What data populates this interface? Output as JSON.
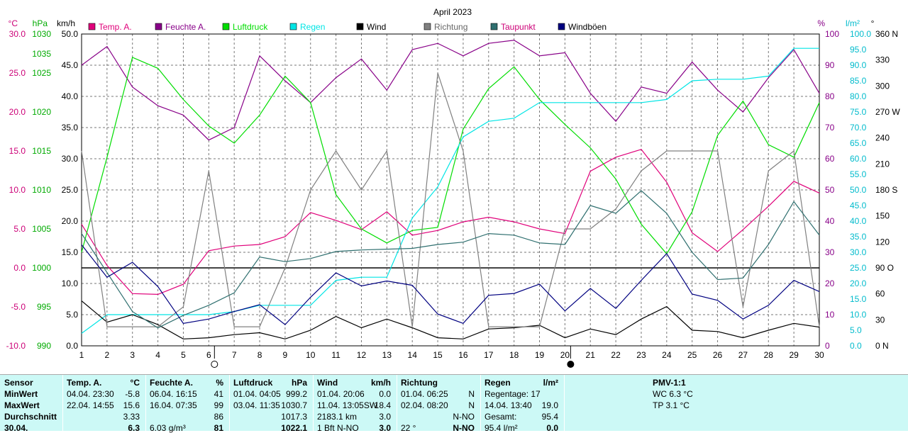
{
  "chart_data": {
    "type": "line",
    "title": "April 2023",
    "x": [
      1,
      2,
      3,
      4,
      5,
      6,
      7,
      8,
      9,
      10,
      11,
      12,
      13,
      14,
      15,
      16,
      17,
      18,
      19,
      20,
      21,
      22,
      23,
      24,
      25,
      26,
      27,
      28,
      29,
      30
    ],
    "axes": {
      "temp_c": {
        "unit": "°C",
        "range": [
          -10,
          30
        ],
        "ticks": [
          "30.0",
          "25.0",
          "20.0",
          "15.0",
          "10.0",
          "5.0",
          "0.0",
          "-5.0",
          "-10.0"
        ],
        "color": "#cc0077"
      },
      "pressure_hpa": {
        "unit": "hPa",
        "range": [
          990,
          1030
        ],
        "ticks": [
          "1035",
          "1030",
          "1025",
          "1020",
          "1015",
          "1010",
          "1005",
          "1000",
          "995",
          "990"
        ],
        "color": "#00aa00"
      },
      "speed_kmh": {
        "unit": "km/h",
        "range": [
          0,
          50
        ],
        "ticks": [
          "50.0",
          "45.0",
          "40.0",
          "35.0",
          "30.0",
          "25.0",
          "20.0",
          "15.0",
          "10.0",
          "5.0",
          "0.0"
        ],
        "color": "#000000"
      },
      "percent": {
        "unit": "%",
        "range": [
          0,
          100
        ],
        "ticks": [
          "100",
          "90",
          "80",
          "70",
          "60",
          "50",
          "40",
          "30",
          "20",
          "10",
          "0"
        ],
        "color": "#880088"
      },
      "rain_lm2": {
        "unit": "l/m²",
        "range": [
          0,
          100
        ],
        "ticks": [
          "100.0",
          "95.0",
          "90.0",
          "85.0",
          "80.0",
          "75.0",
          "70.0",
          "65.0",
          "60.0",
          "55.0",
          "50.0",
          "45.0",
          "40.0",
          "35.0",
          "30.0",
          "25.0",
          "20.0",
          "15.0",
          "10.0",
          "5.0",
          "0.0"
        ],
        "color": "#00bbcc"
      },
      "direction_deg": {
        "unit": "°",
        "range": [
          0,
          360
        ],
        "ticks": [
          "360 N",
          "330",
          "300",
          "270 W",
          "240",
          "210",
          "180 S",
          "150",
          "120",
          "90 O",
          "60",
          "30",
          "0 N"
        ],
        "color": "#000000"
      }
    },
    "series": [
      {
        "name": "Temp. A.",
        "color": "#e0007a",
        "axis": "temp_c",
        "values": [
          5.6,
          0.3,
          -3.3,
          -3.4,
          -2.1,
          2.2,
          2.8,
          3.0,
          4.0,
          7.1,
          6.1,
          4.9,
          7.2,
          4.2,
          4.8,
          5.9,
          6.5,
          5.9,
          5.0,
          4.4,
          12.4,
          14.2,
          15.2,
          11.0,
          4.5,
          2.1,
          4.9,
          7.9,
          11.1,
          9.6
        ]
      },
      {
        "name": "Feuchte A.",
        "color": "#880088",
        "axis": "percent",
        "values": [
          90,
          96,
          83,
          77,
          74,
          66,
          70,
          93,
          85,
          78,
          86,
          92,
          82,
          95,
          97,
          93,
          97,
          98,
          93,
          94,
          81,
          72,
          83,
          81,
          91,
          82,
          75,
          86,
          95,
          81
        ]
      },
      {
        "name": "Luftdruck",
        "color": "#00dd00",
        "axis": "pressure_hpa",
        "values": [
          1002.0,
          1014.2,
          1027.0,
          1025.6,
          1021.6,
          1018.2,
          1016.0,
          1019.6,
          1024.6,
          1021.2,
          1009.4,
          1005.0,
          1003.2,
          1004.8,
          1005.2,
          1017.8,
          1023.0,
          1025.8,
          1021.6,
          1018.4,
          1015.4,
          1011.4,
          1005.6,
          1001.8,
          1007.2,
          1017.0,
          1021.4,
          1015.8,
          1014.2,
          1021.2
        ]
      },
      {
        "name": "Regen",
        "color": "#00e5e5",
        "axis": "rain_lm2",
        "values": [
          4,
          10,
          10,
          10,
          10,
          10,
          11,
          13,
          13,
          13,
          21,
          22,
          22,
          41,
          51,
          67,
          72,
          73,
          78,
          78,
          78,
          78,
          78,
          79,
          85,
          85.5,
          85.5,
          86.5,
          95.4,
          95.4
        ]
      },
      {
        "name": "Wind",
        "color": "#000000",
        "axis": "speed_kmh",
        "values": [
          7.2,
          3.8,
          5.0,
          3.4,
          1.1,
          1.3,
          1.8,
          2.1,
          1.1,
          2.5,
          4.7,
          2.9,
          4.3,
          2.9,
          1.3,
          1.1,
          2.7,
          2.9,
          3.3,
          1.3,
          2.7,
          1.8,
          4.3,
          6.3,
          2.5,
          2.3,
          1.3,
          2.5,
          3.6,
          3.0
        ]
      },
      {
        "name": "Richtung",
        "color": "#808080",
        "axis": "direction_deg",
        "values": [
          225,
          22,
          22,
          22,
          45,
          202,
          22,
          22,
          90,
          180,
          225,
          180,
          225,
          22,
          315,
          225,
          22,
          22,
          22,
          135,
          135,
          158,
          202,
          225,
          225,
          225,
          45,
          202,
          225,
          22
        ]
      },
      {
        "name": "Taupunkt",
        "color": "#2f6f6f",
        "axis": "temp_c",
        "values": [
          4.4,
          -0.6,
          -5.6,
          -7.7,
          -6.1,
          -4.8,
          -3.2,
          1.4,
          0.8,
          1.2,
          2.1,
          2.3,
          2.4,
          2.5,
          3.0,
          3.3,
          4.4,
          4.2,
          3.2,
          3.0,
          8.0,
          7.0,
          9.9,
          7.0,
          2.0,
          -1.5,
          -1.3,
          3.0,
          8.5,
          4.2
        ]
      },
      {
        "name": "Windböen",
        "color": "#000080",
        "axis": "speed_kmh",
        "values": [
          16.2,
          11.0,
          13.4,
          9.5,
          3.6,
          4.3,
          5.5,
          6.6,
          3.4,
          7.8,
          11.7,
          9.6,
          10.4,
          9.7,
          5.1,
          3.6,
          8.1,
          8.4,
          9.9,
          5.6,
          9.2,
          6.0,
          10.5,
          14.8,
          8.3,
          7.3,
          4.3,
          6.5,
          10.5,
          8.7
        ]
      }
    ],
    "moon_phases": [
      {
        "day": 6,
        "phase": "full"
      },
      {
        "day": 20,
        "phase": "new"
      }
    ],
    "grid": true
  },
  "table": {
    "columns": [
      {
        "title": "Sensor",
        "unit": "",
        "rows": [
          [
            "MinWert"
          ],
          [
            "MaxWert"
          ],
          [
            "Durchschnitt"
          ],
          [
            "30.04."
          ]
        ]
      },
      {
        "title": "Temp. A.",
        "unit": "°C",
        "rows": [
          [
            "04.04.  23:30",
            "-5.8"
          ],
          [
            "22.04.  14:55",
            "15.6"
          ],
          [
            "",
            "3.33"
          ],
          [
            "",
            "6.3"
          ]
        ]
      },
      {
        "title": "Feuchte A.",
        "unit": "%",
        "rows": [
          [
            "06.04.  16:15",
            "41"
          ],
          [
            "16.04.  07:35",
            "99"
          ],
          [
            "",
            "86"
          ],
          [
            "6.03 g/m³",
            "81"
          ]
        ]
      },
      {
        "title": "Luftdruck",
        "unit": "hPa",
        "rows": [
          [
            "01.04.  04:05",
            "999.2"
          ],
          [
            "03.04.  11:35",
            "1030.7"
          ],
          [
            "",
            "1017.3"
          ],
          [
            "",
            "1022.1"
          ]
        ]
      },
      {
        "title": "Wind",
        "unit": "km/h",
        "rows": [
          [
            "01.04.  20:06",
            "0.0"
          ],
          [
            "11.04.  13:05SW",
            "18.4"
          ],
          [
            "2183.1 km",
            "3.0"
          ],
          [
            "1 Bft N-NO",
            "3.0"
          ]
        ]
      },
      {
        "title": "Richtung",
        "unit": "",
        "rows": [
          [
            "01.04.  06:25",
            "N"
          ],
          [
            "02.04.  08:20",
            "N"
          ],
          [
            "",
            "N-NO"
          ],
          [
            "22 °",
            "N-NO"
          ]
        ]
      },
      {
        "title": "Regen",
        "unit": "l/m²",
        "rows": [
          [
            "Regentage: 17",
            ""
          ],
          [
            "14.04.  13:40",
            "19.0"
          ],
          [
            "Gesamt:",
            "95.4"
          ],
          [
            "95.4 l/m²",
            "0.0"
          ]
        ]
      },
      {
        "title": "PMV-1:1",
        "unit": "",
        "rows": [
          [
            "WC 6.3 °C"
          ],
          [
            "TP 3.1 °C"
          ],
          [
            ""
          ],
          [
            ""
          ]
        ]
      }
    ]
  }
}
